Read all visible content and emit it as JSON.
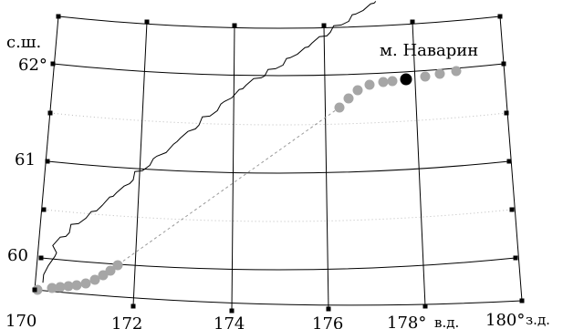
{
  "map": {
    "lat_unit": "с.ш.",
    "lat_labels": [
      "62°",
      "61",
      "60"
    ],
    "lon_labels": [
      "170",
      "172",
      "174",
      "176",
      "178°",
      "180°"
    ],
    "lon_unit_east": "в.д.",
    "lon_unit_west": "з.д.",
    "place_label": "м. Наварин",
    "colors": {
      "graticule": "#000000",
      "minor_grid": "#bbbbbb",
      "coast": "#000000",
      "track_point": "#a6a6a6",
      "marker": "#000000",
      "connector": "#999999"
    }
  }
}
